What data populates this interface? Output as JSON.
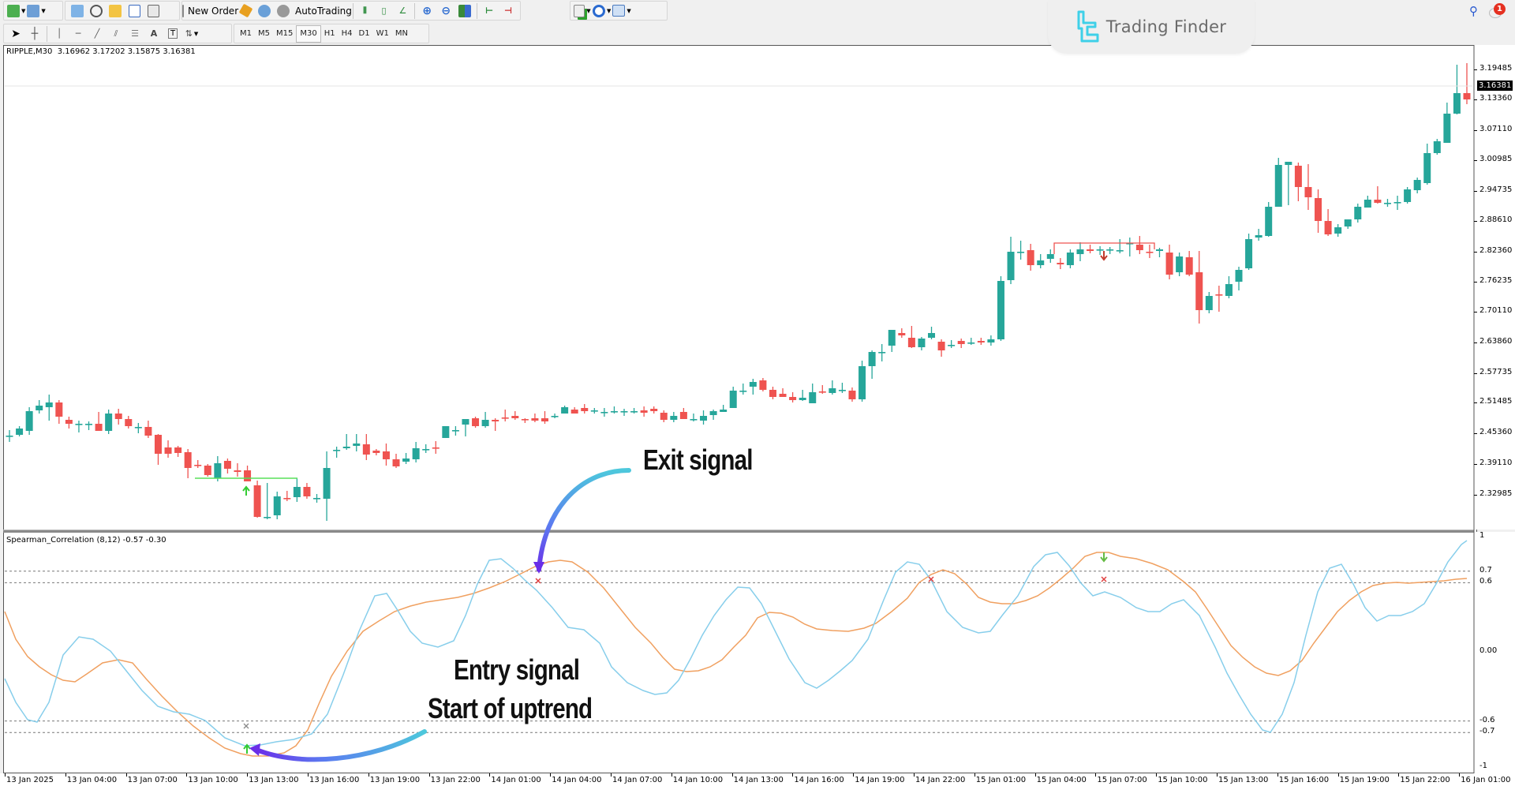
{
  "toolbar_main": {
    "new_order_label": "New Order",
    "autotrading_label": "AutoTrading",
    "icons": [
      "new-chart-icon",
      "profiles-icon",
      "market-watch-icon",
      "navigator-crosshair-icon",
      "favorites-icon",
      "data-window-icon",
      "strategy-tester-icon",
      "new-order-icon",
      "metaeditor-icon",
      "signals-icon",
      "autotrading-icon",
      "bar-chart-icon",
      "candlestick-icon",
      "line-chart-icon",
      "zoom-in-icon",
      "zoom-out-icon",
      "tile-windows-icon",
      "scroll-chart-icon",
      "chart-shift-icon",
      "indicators-icon",
      "periods-icon",
      "templates-icon"
    ]
  },
  "toolbar_draw": {
    "tools": [
      "cursor-icon",
      "crosshair-icon",
      "vertical-line-icon",
      "horizontal-line-icon",
      "trendline-icon",
      "equidistant-channel-icon",
      "fibonacci-icon",
      "text-icon",
      "text-label-icon",
      "arrows-icon"
    ],
    "text_tool": "A",
    "label_tool": "T",
    "timeframes": [
      "M1",
      "M5",
      "M15",
      "M30",
      "H1",
      "H4",
      "D1",
      "W1",
      "MN"
    ],
    "active_timeframe": "M30"
  },
  "top_right": {
    "search_icon": "search-icon",
    "notifications_count": "1"
  },
  "brand": {
    "name": "Trading Finder",
    "accent": "#3fd0e8"
  },
  "chart": {
    "symbol_line": "RIPPLE,M30  3.16962 3.17202 3.15875 3.16381",
    "current_price": "3.16381",
    "price_axis": [
      "3.19485",
      "3.13360",
      "3.07110",
      "3.00985",
      "2.94735",
      "2.88610",
      "2.82360",
      "2.76235",
      "2.70110",
      "2.63860",
      "2.57735",
      "2.51485",
      "2.45360",
      "2.39110",
      "2.32985"
    ],
    "bull_color": "#26a69a",
    "bear_color": "#ef5350"
  },
  "indicator": {
    "title": "Spearman_Correlation (8,12) -0.57 -0.30",
    "axis": [
      "1",
      "0.7",
      "0.6",
      "0.00",
      "-0.6",
      "-0.7",
      "-1"
    ],
    "fast_color": "#87ceeb",
    "slow_color": "#f0a060"
  },
  "time_axis": [
    "13 Jan 2025",
    "13 Jan 04:00",
    "13 Jan 07:00",
    "13 Jan 10:00",
    "13 Jan 13:00",
    "13 Jan 16:00",
    "13 Jan 19:00",
    "13 Jan 22:00",
    "14 Jan 01:00",
    "14 Jan 04:00",
    "14 Jan 07:00",
    "14 Jan 10:00",
    "14 Jan 13:00",
    "14 Jan 16:00",
    "14 Jan 19:00",
    "14 Jan 22:00",
    "15 Jan 01:00",
    "15 Jan 04:00",
    "15 Jan 07:00",
    "15 Jan 10:00",
    "15 Jan 13:00",
    "15 Jan 16:00",
    "15 Jan 19:00",
    "15 Jan 22:00",
    "16 Jan 01:00"
  ],
  "annotations": {
    "exit": "Exit signal",
    "entry_line1": "Entry signal",
    "entry_line2": "Start of uptrend"
  }
}
